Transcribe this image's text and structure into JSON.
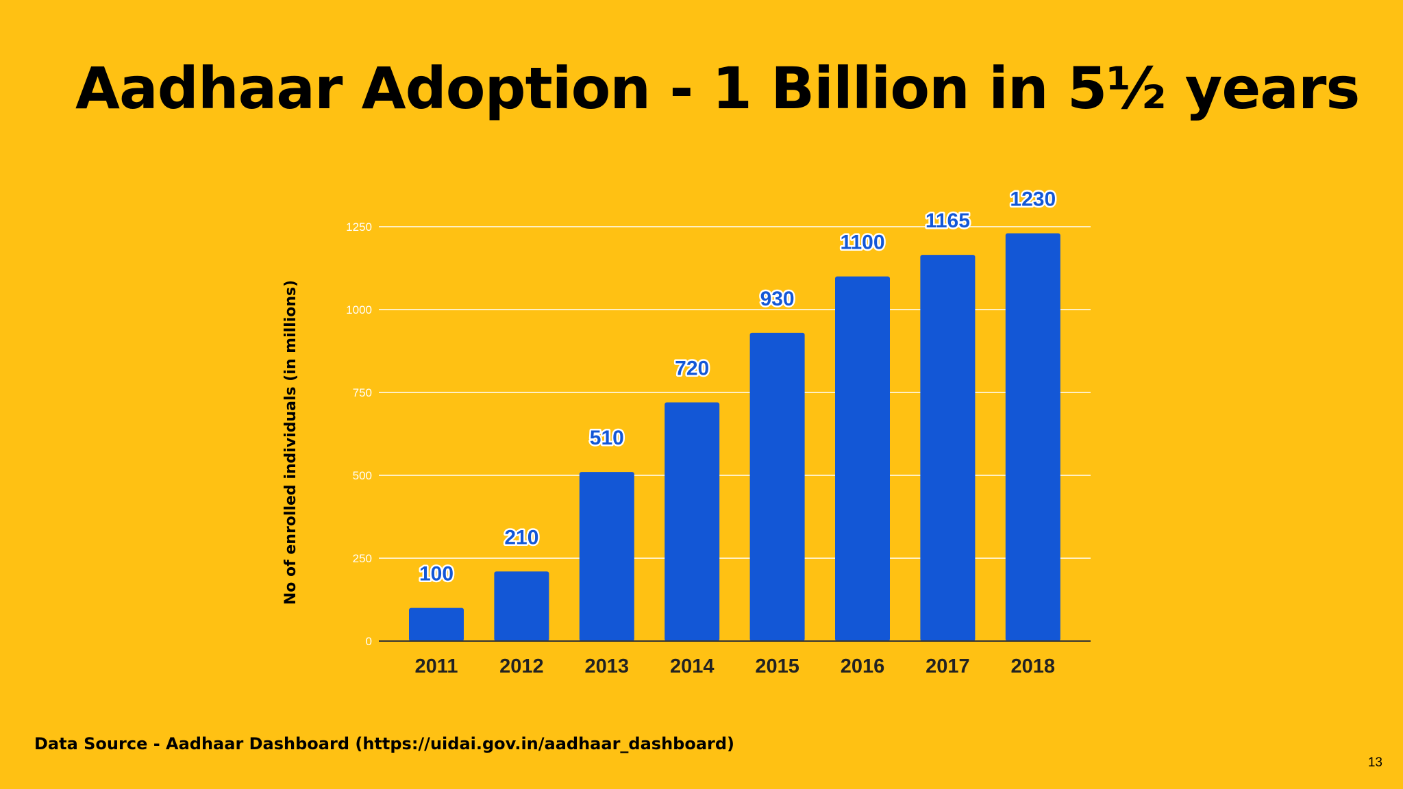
{
  "slide": {
    "title": "Aadhaar Adoption - 1 Billion in 5½ years",
    "source": "Data Source - Aadhaar Dashboard (https://uidai.gov.in/aadhaar_dashboard)",
    "page_number": "13"
  },
  "colors": {
    "background": "#FFC113",
    "bar": "#1357D6",
    "gridline": "#FFFFFF",
    "baseline": "#333333"
  },
  "chart_data": {
    "type": "bar",
    "title": "",
    "xlabel": "",
    "ylabel": "No of enrolled individuals (in millions)",
    "categories": [
      "2011",
      "2012",
      "2013",
      "2014",
      "2015",
      "2016",
      "2017",
      "2018"
    ],
    "values": [
      100,
      210,
      510,
      720,
      930,
      1100,
      1165,
      1230
    ],
    "data_labels": [
      "100",
      "210",
      "510",
      "720",
      "930",
      "1100",
      "1165",
      "1230"
    ],
    "yticks": [
      0,
      250,
      500,
      750,
      1000,
      1250
    ],
    "ylim": [
      0,
      1250
    ],
    "grid": true,
    "legend": "none"
  }
}
